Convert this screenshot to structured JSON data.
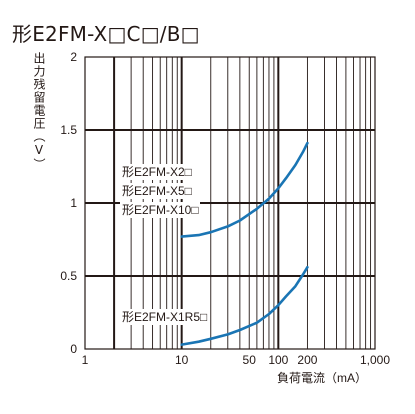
{
  "page": {
    "title": "形E2FM-X□C□/B□"
  },
  "chart_data": {
    "type": "line",
    "title": "形E2FM-X□C□/B□",
    "xlabel": "負荷電流（mA）",
    "ylabel": "出力残留電圧（V）",
    "x_scale": "log",
    "xlim": [
      1,
      1000
    ],
    "ylim": [
      0,
      2
    ],
    "grid": true,
    "x_ticks": [
      {
        "value": 1,
        "label": "1"
      },
      {
        "value": 10,
        "label": "10"
      },
      {
        "value": 50,
        "label": "50"
      },
      {
        "value": 100,
        "label": "100"
      },
      {
        "value": 200,
        "label": "200"
      },
      {
        "value": 1000,
        "label": "1,000"
      }
    ],
    "y_ticks": [
      {
        "value": 0,
        "label": "0"
      },
      {
        "value": 0.5,
        "label": "0.5"
      },
      {
        "value": 1,
        "label": "1"
      },
      {
        "value": 1.5,
        "label": "1.5"
      },
      {
        "value": 2,
        "label": "2"
      }
    ],
    "series_color": "#1a75b4",
    "series": [
      {
        "labels": [
          "形E2FM-X2□",
          "形E2FM-X5□",
          "形E2FM-X10□"
        ],
        "x": [
          10,
          15,
          20,
          30,
          40,
          60,
          80,
          100,
          120,
          150,
          180,
          200
        ],
        "y": [
          0.77,
          0.78,
          0.8,
          0.84,
          0.88,
          0.96,
          1.03,
          1.1,
          1.17,
          1.26,
          1.35,
          1.41
        ]
      },
      {
        "labels": [
          "形E2FM-X1R5□"
        ],
        "x": [
          10,
          15,
          20,
          30,
          40,
          60,
          80,
          100,
          120,
          150,
          180,
          200
        ],
        "y": [
          0.03,
          0.05,
          0.07,
          0.1,
          0.13,
          0.18,
          0.24,
          0.3,
          0.36,
          0.43,
          0.51,
          0.56
        ]
      }
    ]
  }
}
